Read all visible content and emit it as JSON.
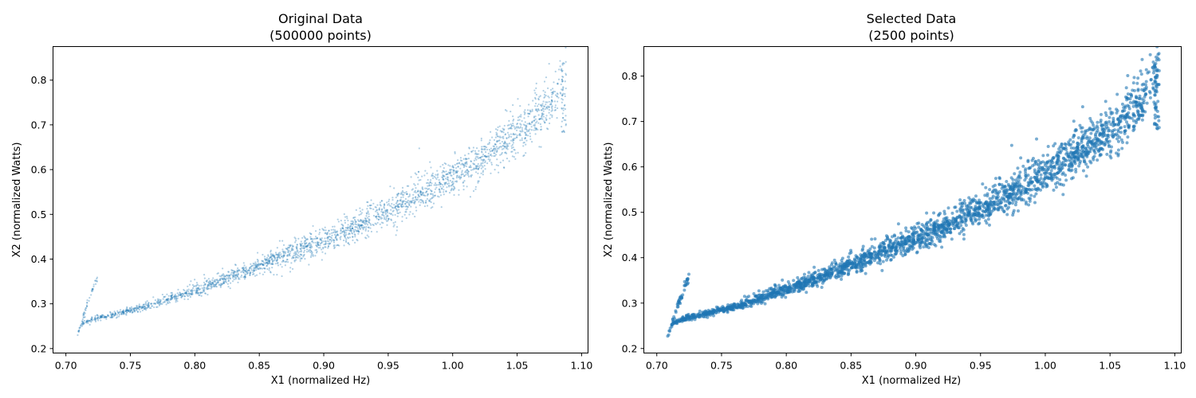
{
  "chart_data": [
    {
      "type": "scatter",
      "title_line1": "Original Data",
      "title_line2": "(500000 points)",
      "xlabel": "X1 (normalized Hz)",
      "ylabel": "X2 (normalized Watts)",
      "xlim": [
        0.69,
        1.105
      ],
      "ylim": [
        0.19,
        0.875
      ],
      "xticks": [
        "0.70",
        "0.75",
        "0.80",
        "0.85",
        "0.90",
        "0.95",
        "1.00",
        "1.05",
        "1.10"
      ],
      "yticks": [
        "0.2",
        "0.3",
        "0.4",
        "0.5",
        "0.6",
        "0.7",
        "0.8"
      ],
      "color": "#1f77b4",
      "point_alpha": 0.35,
      "point_radius": 1.1,
      "series": [
        {
          "x": [
            0.708,
            0.712,
            0.718,
            0.725,
            0.74,
            0.76,
            0.78,
            0.8,
            0.82,
            0.84,
            0.86,
            0.88,
            0.9,
            0.92,
            0.94,
            0.96,
            0.98,
            1.0,
            1.02,
            1.04,
            1.06,
            1.07,
            1.08,
            1.085,
            1.088
          ],
          "y": [
            0.222,
            0.255,
            0.262,
            0.268,
            0.278,
            0.292,
            0.31,
            0.33,
            0.35,
            0.372,
            0.395,
            0.418,
            0.44,
            0.465,
            0.49,
            0.52,
            0.552,
            0.585,
            0.62,
            0.657,
            0.7,
            0.728,
            0.76,
            0.8,
            0.84
          ]
        }
      ]
    },
    {
      "type": "scatter",
      "title_line1": "Selected Data",
      "title_line2": "(2500 points)",
      "xlabel": "X1 (normalized Hz)",
      "ylabel": "X2 (normalized Watts)",
      "xlim": [
        0.69,
        1.105
      ],
      "ylim": [
        0.19,
        0.865
      ],
      "xticks": [
        "0.70",
        "0.75",
        "0.80",
        "0.85",
        "0.90",
        "0.95",
        "1.00",
        "1.05",
        "1.10"
      ],
      "yticks": [
        "0.2",
        "0.3",
        "0.4",
        "0.5",
        "0.6",
        "0.7",
        "0.8"
      ],
      "color": "#1f77b4",
      "point_alpha": 0.6,
      "point_radius": 2.0,
      "series": [
        {
          "x": [
            0.708,
            0.712,
            0.718,
            0.725,
            0.74,
            0.76,
            0.78,
            0.8,
            0.82,
            0.84,
            0.86,
            0.88,
            0.9,
            0.92,
            0.94,
            0.96,
            0.98,
            1.0,
            1.02,
            1.04,
            1.06,
            1.07,
            1.08,
            1.085,
            1.088
          ],
          "y": [
            0.222,
            0.255,
            0.262,
            0.268,
            0.278,
            0.292,
            0.31,
            0.33,
            0.35,
            0.372,
            0.395,
            0.418,
            0.44,
            0.465,
            0.49,
            0.52,
            0.552,
            0.585,
            0.62,
            0.657,
            0.7,
            0.728,
            0.76,
            0.8,
            0.835
          ]
        }
      ]
    }
  ]
}
